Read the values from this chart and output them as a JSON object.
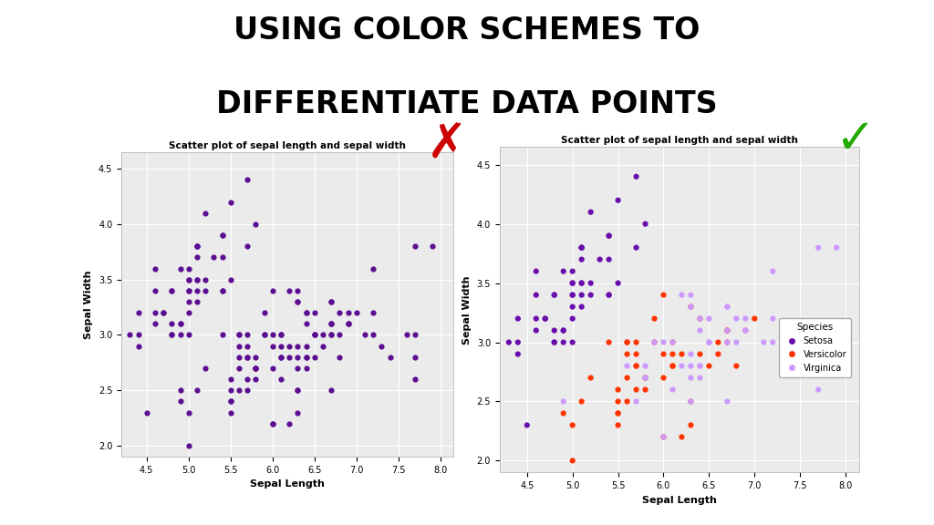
{
  "title_line1": "USING COLOR SCHEMES TO",
  "title_line2": "DIFFERENTIATE DATA POINTS",
  "plot_title": "Scatter plot of sepal length and sepal width",
  "xlabel": "Sepal Length",
  "ylabel": "Sepal Width",
  "xticks": [
    4.5,
    5.0,
    5.5,
    6.0,
    6.5,
    7.0,
    7.5,
    8.0
  ],
  "yticks": [
    2.0,
    2.5,
    3.0,
    3.5,
    4.0,
    4.5
  ],
  "bad_color": "#5B0E91",
  "species_colors": {
    "Setosa": "#6A0DAD",
    "Versicolor": "#FF3300",
    "Virginica": "#CC99FF"
  },
  "background_color": "#ffffff",
  "sepal_length": [
    5.1,
    4.9,
    4.7,
    4.6,
    5.0,
    5.4,
    4.6,
    5.0,
    4.4,
    4.9,
    5.4,
    4.8,
    4.8,
    4.3,
    5.8,
    5.7,
    5.4,
    5.1,
    5.7,
    5.1,
    5.4,
    5.1,
    4.6,
    5.1,
    4.8,
    5.0,
    5.0,
    5.2,
    5.2,
    4.7,
    4.8,
    5.4,
    5.2,
    5.5,
    4.9,
    5.0,
    5.5,
    4.9,
    4.4,
    5.1,
    5.0,
    4.5,
    4.4,
    5.0,
    5.1,
    4.8,
    5.1,
    4.6,
    5.3,
    5.0,
    7.0,
    6.4,
    6.9,
    5.5,
    6.5,
    5.7,
    6.3,
    4.9,
    6.6,
    5.2,
    5.0,
    5.9,
    6.0,
    6.1,
    5.6,
    6.7,
    5.6,
    5.8,
    6.2,
    5.6,
    5.9,
    6.1,
    6.3,
    6.1,
    6.4,
    6.6,
    6.8,
    6.7,
    6.0,
    5.7,
    5.5,
    5.5,
    5.8,
    6.0,
    5.4,
    6.0,
    6.7,
    6.3,
    5.6,
    5.5,
    5.5,
    6.1,
    5.8,
    5.0,
    5.6,
    5.7,
    5.7,
    6.2,
    5.1,
    5.7,
    6.3,
    5.8,
    7.1,
    6.3,
    6.5,
    7.6,
    4.9,
    7.3,
    6.7,
    7.2,
    6.5,
    6.4,
    6.8,
    5.7,
    5.8,
    6.4,
    6.5,
    7.7,
    7.7,
    6.0,
    6.9,
    5.6,
    7.7,
    6.3,
    6.7,
    7.2,
    6.2,
    6.1,
    6.4,
    7.2,
    7.4,
    7.9,
    6.4,
    6.3,
    6.1,
    7.7,
    6.3,
    6.4,
    6.0,
    6.9,
    6.7,
    6.9,
    5.8,
    6.8,
    6.7,
    6.7,
    6.3,
    6.5,
    6.2,
    5.9
  ],
  "sepal_width": [
    3.5,
    3.0,
    3.2,
    3.1,
    3.6,
    3.9,
    3.4,
    3.4,
    2.9,
    3.1,
    3.7,
    3.4,
    3.0,
    3.0,
    4.0,
    4.4,
    3.9,
    3.5,
    3.8,
    3.8,
    3.4,
    3.7,
    3.6,
    3.3,
    3.4,
    3.0,
    3.4,
    3.5,
    3.4,
    3.2,
    3.1,
    3.4,
    4.1,
    4.2,
    3.1,
    3.2,
    3.5,
    3.6,
    3.0,
    3.4,
    3.5,
    2.3,
    3.2,
    3.5,
    3.8,
    3.0,
    3.8,
    3.2,
    3.7,
    3.3,
    3.2,
    3.2,
    3.1,
    2.3,
    2.8,
    2.8,
    3.3,
    2.4,
    2.9,
    2.7,
    2.0,
    3.0,
    2.2,
    2.9,
    2.9,
    3.1,
    3.0,
    2.7,
    2.2,
    2.5,
    3.2,
    2.8,
    2.5,
    2.8,
    2.9,
    3.0,
    2.8,
    3.0,
    2.9,
    2.6,
    2.4,
    2.4,
    2.7,
    2.7,
    3.0,
    3.4,
    3.1,
    2.3,
    3.0,
    2.5,
    2.6,
    3.0,
    2.6,
    2.3,
    2.7,
    3.0,
    2.9,
    2.9,
    2.5,
    2.8,
    3.3,
    2.7,
    3.0,
    2.9,
    3.0,
    3.0,
    2.5,
    2.9,
    2.5,
    3.6,
    3.2,
    2.7,
    3.0,
    2.5,
    2.8,
    3.2,
    3.0,
    3.8,
    2.6,
    2.2,
    3.2,
    2.8,
    2.8,
    2.7,
    3.3,
    3.2,
    2.8,
    3.0,
    2.8,
    3.0,
    2.8,
    3.8,
    2.8,
    2.8,
    2.6,
    3.0,
    3.4,
    3.1,
    3.0,
    3.1,
    3.1,
    3.1,
    2.7,
    3.2,
    3.3,
    3.0,
    2.5,
    3.0,
    3.4,
    3.0
  ],
  "species": [
    "Setosa",
    "Setosa",
    "Setosa",
    "Setosa",
    "Setosa",
    "Setosa",
    "Setosa",
    "Setosa",
    "Setosa",
    "Setosa",
    "Setosa",
    "Setosa",
    "Setosa",
    "Setosa",
    "Setosa",
    "Setosa",
    "Setosa",
    "Setosa",
    "Setosa",
    "Setosa",
    "Setosa",
    "Setosa",
    "Setosa",
    "Setosa",
    "Setosa",
    "Setosa",
    "Setosa",
    "Setosa",
    "Setosa",
    "Setosa",
    "Setosa",
    "Setosa",
    "Setosa",
    "Setosa",
    "Setosa",
    "Setosa",
    "Setosa",
    "Setosa",
    "Setosa",
    "Setosa",
    "Setosa",
    "Setosa",
    "Setosa",
    "Setosa",
    "Setosa",
    "Setosa",
    "Setosa",
    "Setosa",
    "Setosa",
    "Setosa",
    "Versicolor",
    "Versicolor",
    "Versicolor",
    "Versicolor",
    "Versicolor",
    "Versicolor",
    "Versicolor",
    "Versicolor",
    "Versicolor",
    "Versicolor",
    "Versicolor",
    "Versicolor",
    "Versicolor",
    "Versicolor",
    "Versicolor",
    "Versicolor",
    "Versicolor",
    "Versicolor",
    "Versicolor",
    "Versicolor",
    "Versicolor",
    "Versicolor",
    "Versicolor",
    "Versicolor",
    "Versicolor",
    "Versicolor",
    "Versicolor",
    "Versicolor",
    "Versicolor",
    "Versicolor",
    "Versicolor",
    "Versicolor",
    "Versicolor",
    "Versicolor",
    "Versicolor",
    "Versicolor",
    "Versicolor",
    "Versicolor",
    "Versicolor",
    "Versicolor",
    "Versicolor",
    "Versicolor",
    "Versicolor",
    "Versicolor",
    "Versicolor",
    "Versicolor",
    "Versicolor",
    "Versicolor",
    "Versicolor",
    "Versicolor",
    "Virginica",
    "Virginica",
    "Virginica",
    "Virginica",
    "Virginica",
    "Virginica",
    "Virginica",
    "Virginica",
    "Virginica",
    "Virginica",
    "Virginica",
    "Virginica",
    "Virginica",
    "Virginica",
    "Virginica",
    "Virginica",
    "Virginica",
    "Virginica",
    "Virginica",
    "Virginica",
    "Virginica",
    "Virginica",
    "Virginica",
    "Virginica",
    "Virginica",
    "Virginica",
    "Virginica",
    "Virginica",
    "Virginica",
    "Virginica",
    "Virginica",
    "Virginica",
    "Virginica",
    "Virginica",
    "Virginica",
    "Virginica",
    "Virginica",
    "Virginica",
    "Virginica",
    "Virginica",
    "Virginica",
    "Virginica",
    "Virginica",
    "Virginica",
    "Virginica",
    "Virginica",
    "Virginica",
    "Virginica",
    "Virginica",
    "Virginica"
  ]
}
